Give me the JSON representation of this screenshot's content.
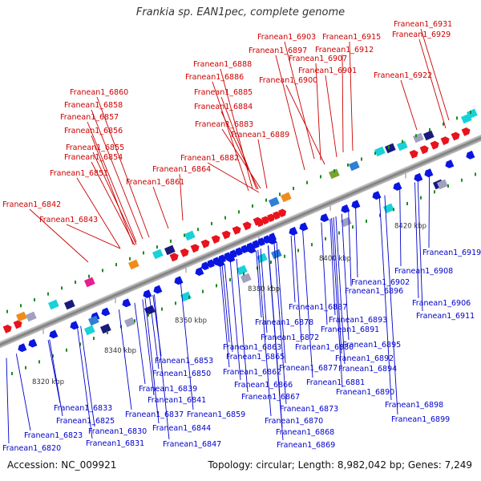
{
  "title": "Frankia sp. EAN1pec, complete genome",
  "footer": {
    "accession": "Accession: NC_009921",
    "summary": "Topology: circular; Length: 8,982,042 bp; Genes: 7,249"
  },
  "colors": {
    "top_strand_label": "#cc0000",
    "bottom_strand_label": "#0000cc",
    "top_arrow": "#e8131c",
    "bottom_arrow": "#0a16e0",
    "axis": "#8c8c8c"
  },
  "ticks": [
    "8320 kbp",
    "8340 kbp",
    "8360 kbp",
    "8380 kbp",
    "8400 kbp",
    "8420 kbp"
  ],
  "top_labels": [
    "Franean1_6931",
    "Franean1_6929",
    "Franean1_6903",
    "Franean1_6915",
    "Franean1_6897",
    "Franean1_6912",
    "Franean1_6907",
    "Franean1_6888",
    "Franean1_6901",
    "Franean1_6886",
    "Franean1_6900",
    "Franean1_6922",
    "Franean1_6860",
    "Franean1_6885",
    "Franean1_6858",
    "Franean1_6884",
    "Franean1_6857",
    "Franean1_6883",
    "Franean1_6856",
    "Franean1_6889",
    "Franean1_6855",
    "Franean1_6854",
    "Franean1_6882",
    "Franean1_6864",
    "Franean1_6851",
    "Franean1_6861",
    "Franean1_6842",
    "Franean1_6843"
  ],
  "bottom_labels": [
    "Franean1_6919",
    "Franean1_6908",
    "Franean1_6902",
    "Franean1_6896",
    "Franean1_6906",
    "Franean1_6911",
    "Franean1_6887",
    "Franean1_6893",
    "Franean1_6878",
    "Franean1_6891",
    "Franean1_6872",
    "Franean1_6880",
    "Franean1_6895",
    "Franean1_6863",
    "Franean1_6892",
    "Franean1_6865",
    "Franean1_6853",
    "Franean1_6877",
    "Franean1_6894",
    "Franean1_6850",
    "Franean1_6862",
    "Franean1_6881",
    "Franean1_6866",
    "Franean1_6839",
    "Franean1_6890",
    "Franean1_6841",
    "Franean1_6867",
    "Franean1_6873",
    "Franean1_6833",
    "Franean1_6898",
    "Franean1_6837",
    "Franean1_6859",
    "Franean1_6870",
    "Franean1_6899",
    "Franean1_6825",
    "Franean1_6844",
    "Franean1_6830",
    "Franean1_6868",
    "Franean1_6823",
    "Franean1_6847",
    "Franean1_6831",
    "Franean1_6869",
    "Franean1_6820"
  ]
}
